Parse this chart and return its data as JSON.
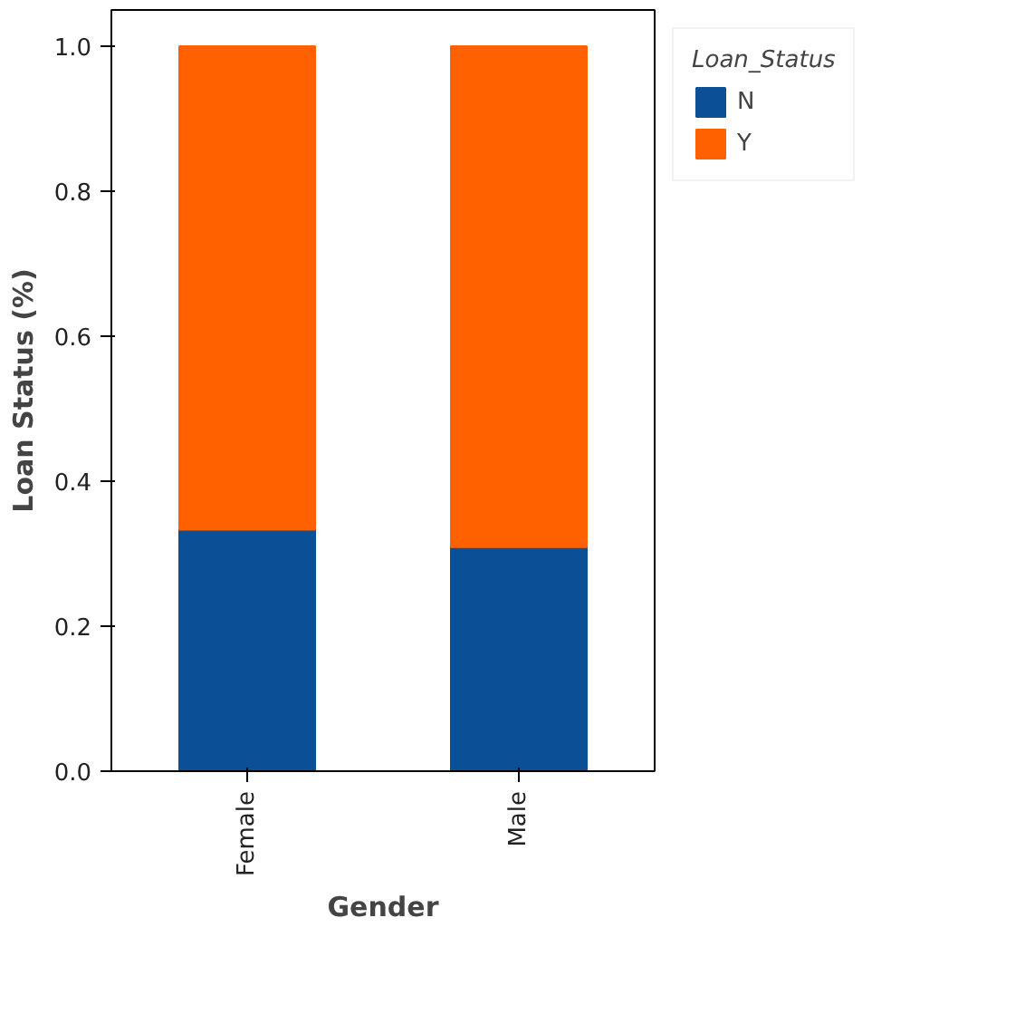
{
  "chart_data": {
    "type": "bar",
    "stacked": true,
    "xlabel": "Gender",
    "ylabel": "Loan Status (%)",
    "legend_title": "Loan_Status",
    "categories": [
      "Female",
      "Male"
    ],
    "series": [
      {
        "name": "N",
        "color": "#0b4f96",
        "values": [
          0.333,
          0.309
        ]
      },
      {
        "name": "Y",
        "color": "#ff6000",
        "values": [
          0.667,
          0.691
        ]
      }
    ],
    "ylim": [
      0,
      1.05
    ],
    "yticks": [
      {
        "value": 0,
        "label": "0.0"
      },
      0.2,
      0.4,
      0.6,
      0.8,
      {
        "value": 1,
        "label": "1.0"
      }
    ],
    "grid": false,
    "legend": "right"
  }
}
